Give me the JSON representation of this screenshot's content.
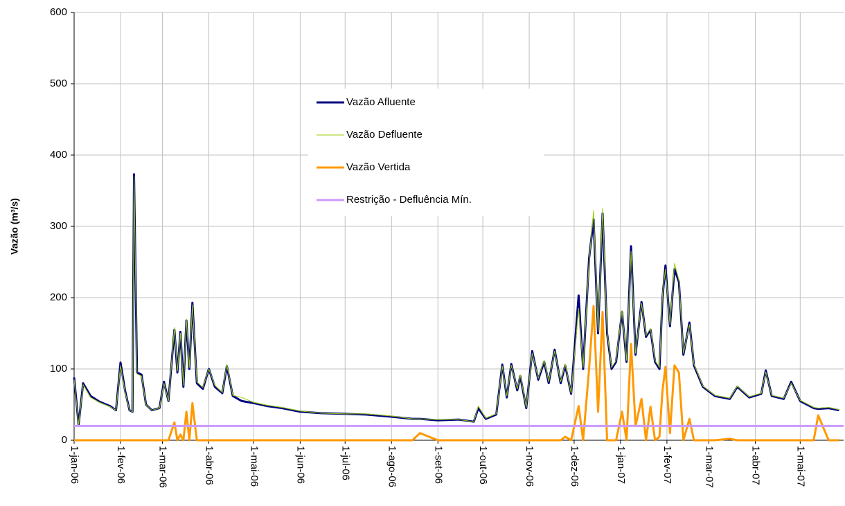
{
  "chart_data": {
    "type": "line",
    "y_label": "Vazão (m³/s)",
    "x": [
      "2006-01-01",
      "2006-01-04",
      "2006-01-07",
      "2006-01-12",
      "2006-01-18",
      "2006-01-25",
      "2006-01-29",
      "2006-02-01",
      "2006-02-04",
      "2006-02-07",
      "2006-02-09",
      "2006-02-10",
      "2006-02-12",
      "2006-02-15",
      "2006-02-18",
      "2006-02-22",
      "2006-02-27",
      "2006-03-02",
      "2006-03-05",
      "2006-03-09",
      "2006-03-11",
      "2006-03-13",
      "2006-03-15",
      "2006-03-17",
      "2006-03-19",
      "2006-03-21",
      "2006-03-24",
      "2006-03-28",
      "2006-04-01",
      "2006-04-05",
      "2006-04-10",
      "2006-04-13",
      "2006-04-17",
      "2006-04-23",
      "2006-05-01",
      "2006-05-10",
      "2006-05-20",
      "2006-06-01",
      "2006-06-15",
      "2006-07-01",
      "2006-07-15",
      "2006-08-01",
      "2006-08-15",
      "2006-08-20",
      "2006-09-01",
      "2006-09-15",
      "2006-09-25",
      "2006-09-28",
      "2006-10-03",
      "2006-10-10",
      "2006-10-14",
      "2006-10-17",
      "2006-10-20",
      "2006-10-24",
      "2006-10-26",
      "2006-10-30",
      "2006-11-03",
      "2006-11-07",
      "2006-11-11",
      "2006-11-14",
      "2006-11-18",
      "2006-11-22",
      "2006-11-25",
      "2006-11-29",
      "2006-12-04",
      "2006-12-07",
      "2006-12-11",
      "2006-12-14",
      "2006-12-17",
      "2006-12-20",
      "2006-12-23",
      "2006-12-26",
      "2006-12-29",
      "2007-01-02",
      "2007-01-05",
      "2007-01-08",
      "2007-01-11",
      "2007-01-15",
      "2007-01-18",
      "2007-01-21",
      "2007-01-24",
      "2007-01-27",
      "2007-01-29",
      "2007-01-31",
      "2007-02-03",
      "2007-02-06",
      "2007-02-09",
      "2007-02-12",
      "2007-02-16",
      "2007-02-19",
      "2007-02-25",
      "2007-03-05",
      "2007-03-15",
      "2007-03-20",
      "2007-03-28",
      "2007-04-05",
      "2007-04-08",
      "2007-04-12",
      "2007-04-20",
      "2007-04-25",
      "2007-05-01",
      "2007-05-10",
      "2007-05-13",
      "2007-05-20",
      "2007-05-27"
    ],
    "series": [
      {
        "name": "Vazão Afluente",
        "color": "#000080",
        "width": 3,
        "values": [
          88,
          22,
          80,
          62,
          54,
          48,
          42,
          109,
          70,
          42,
          40,
          373,
          95,
          92,
          50,
          42,
          45,
          82,
          55,
          155,
          95,
          152,
          75,
          168,
          100,
          193,
          80,
          72,
          100,
          75,
          66,
          104,
          62,
          55,
          52,
          48,
          45,
          40,
          38,
          37,
          36,
          33,
          30,
          30,
          28,
          29,
          26,
          45,
          30,
          36,
          106,
          60,
          107,
          70,
          90,
          45,
          125,
          85,
          110,
          80,
          127,
          80,
          105,
          65,
          203,
          100,
          255,
          310,
          150,
          318,
          150,
          100,
          110,
          180,
          110,
          272,
          120,
          194,
          145,
          155,
          110,
          100,
          200,
          245,
          160,
          240,
          222,
          120,
          165,
          105,
          75,
          62,
          58,
          75,
          60,
          65,
          98,
          62,
          58,
          82,
          55,
          45,
          44,
          45,
          42
        ]
      },
      {
        "name": "Vazão Defluente",
        "color": "#99cc00",
        "width": 1,
        "values": [
          85,
          22,
          78,
          60,
          53,
          47,
          42,
          105,
          68,
          42,
          40,
          370,
          93,
          90,
          50,
          42,
          45,
          80,
          55,
          158,
          97,
          150,
          77,
          170,
          102,
          190,
          82,
          74,
          100,
          77,
          67,
          106,
          63,
          60,
          53,
          49,
          46,
          41,
          38,
          37,
          37,
          34,
          30,
          30,
          29,
          29,
          26,
          48,
          31,
          37,
          104,
          62,
          105,
          72,
          92,
          46,
          122,
          87,
          112,
          82,
          125,
          82,
          107,
          66,
          185,
          102,
          250,
          322,
          152,
          325,
          152,
          102,
          112,
          182,
          112,
          265,
          122,
          192,
          147,
          157,
          112,
          102,
          205,
          240,
          162,
          248,
          225,
          122,
          162,
          107,
          76,
          63,
          59,
          76,
          61,
          66,
          96,
          63,
          59,
          80,
          56,
          46,
          45,
          46,
          43
        ]
      },
      {
        "name": "Vazão Vertida",
        "color": "#ff9900",
        "width": 3,
        "values": [
          0,
          0,
          0,
          0,
          0,
          0,
          0,
          0,
          0,
          0,
          0,
          0,
          0,
          0,
          0,
          0,
          0,
          0,
          0,
          25,
          0,
          8,
          0,
          40,
          0,
          52,
          0,
          0,
          0,
          0,
          0,
          0,
          0,
          0,
          0,
          0,
          0,
          0,
          0,
          0,
          0,
          0,
          0,
          10,
          0,
          0,
          0,
          0,
          0,
          0,
          0,
          0,
          0,
          0,
          0,
          0,
          0,
          0,
          0,
          0,
          0,
          0,
          5,
          0,
          48,
          0,
          100,
          188,
          40,
          180,
          0,
          0,
          0,
          40,
          0,
          135,
          20,
          58,
          0,
          47,
          0,
          5,
          70,
          103,
          10,
          105,
          95,
          0,
          30,
          0,
          0,
          0,
          2,
          0,
          0,
          0,
          0,
          0,
          0,
          0,
          0,
          0,
          35,
          0,
          0
        ]
      },
      {
        "name": "Restrição - Defluência Mín.",
        "color": "#cc99ff",
        "width": 3,
        "x": [
          "2006-01-01",
          "2007-05-30"
        ],
        "values": [
          20,
          20
        ]
      }
    ],
    "xlim": [
      "2006-01-01",
      "2007-05-30"
    ],
    "xticks": [
      {
        "value": "2006-01-01",
        "label": "1-jan-06"
      },
      {
        "value": "2006-02-01",
        "label": "1-fev-06"
      },
      {
        "value": "2006-03-01",
        "label": "1-mar-06"
      },
      {
        "value": "2006-04-01",
        "label": "1-abr-06"
      },
      {
        "value": "2006-05-01",
        "label": "1-mai-06"
      },
      {
        "value": "2006-06-01",
        "label": "1-jun-06"
      },
      {
        "value": "2006-07-01",
        "label": "1-jul-06"
      },
      {
        "value": "2006-08-01",
        "label": "1-ago-06"
      },
      {
        "value": "2006-09-01",
        "label": "1-set-06"
      },
      {
        "value": "2006-10-01",
        "label": "1-out-06"
      },
      {
        "value": "2006-11-01",
        "label": "1-nov-06"
      },
      {
        "value": "2006-12-01",
        "label": "1-dez-06"
      },
      {
        "value": "2007-01-01",
        "label": "1-jan-07"
      },
      {
        "value": "2007-02-01",
        "label": "1-fev-07"
      },
      {
        "value": "2007-03-01",
        "label": "1-mar-07"
      },
      {
        "value": "2007-04-01",
        "label": "1-abr-07"
      },
      {
        "value": "2007-05-01",
        "label": "1-mai-07"
      }
    ],
    "ylim": [
      0,
      600
    ],
    "yticks": [
      0,
      100,
      200,
      300,
      400,
      500,
      600
    ],
    "grid": true,
    "legend": "center"
  }
}
